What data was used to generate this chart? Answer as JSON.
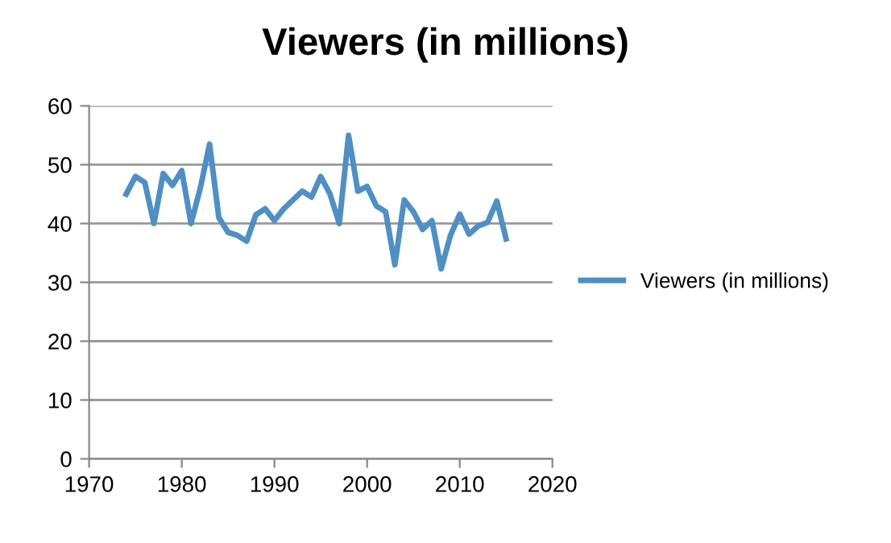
{
  "chart_data": {
    "type": "line",
    "title": "Viewers (in millions)",
    "x": [
      1974,
      1975,
      1976,
      1977,
      1978,
      1979,
      1980,
      1981,
      1982,
      1983,
      1984,
      1985,
      1986,
      1987,
      1988,
      1989,
      1990,
      1991,
      1992,
      1993,
      1994,
      1995,
      1996,
      1997,
      1998,
      1999,
      2000,
      2001,
      2002,
      2003,
      2004,
      2005,
      2006,
      2007,
      2008,
      2009,
      2010,
      2011,
      2012,
      2013,
      2014,
      2015
    ],
    "series": [
      {
        "name": "Viewers (in millions)",
        "color": "#4f8fc4",
        "values": [
          45,
          48,
          47,
          40,
          48.5,
          46.5,
          49,
          40,
          46,
          53.5,
          41,
          38.5,
          38,
          37,
          41.5,
          42.5,
          40.5,
          42.5,
          44,
          45.5,
          44.5,
          48,
          45,
          40,
          55,
          45.5,
          46.3,
          43,
          42,
          33,
          44,
          42,
          39,
          40.5,
          32.3,
          38,
          41.6,
          38.2,
          39.6,
          40.2,
          43.8,
          37.4
        ]
      }
    ],
    "xlim": [
      1970,
      2020
    ],
    "xticks": [
      1970,
      1980,
      1990,
      2000,
      2010,
      2020
    ],
    "ylim": [
      0,
      60
    ],
    "yticks": [
      0,
      10,
      20,
      30,
      40,
      50,
      60
    ],
    "grid": "y",
    "legend": "right",
    "marker": "none",
    "line_style": "solid"
  }
}
